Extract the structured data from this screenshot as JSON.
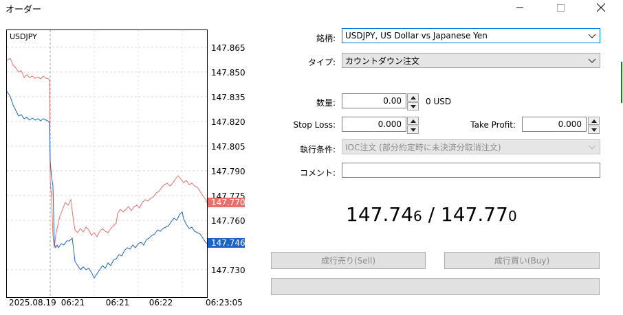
{
  "window": {
    "title": "オーダー"
  },
  "chart": {
    "symbol": "USDJPY",
    "yticks": [
      "147.865",
      "147.850",
      "147.835",
      "147.820",
      "147.805",
      "147.790",
      "147.775",
      "147.760",
      "147.730"
    ],
    "ask_label": "147.770",
    "bid_label": "147.746",
    "xticks": [
      "2025.08.19",
      "06:21",
      "06:21",
      "06:22",
      "06:23:05"
    ],
    "ask_color": "#e8706a",
    "bid_color": "#1e64c8"
  },
  "form": {
    "symbol_label": "銘柄:",
    "symbol_value": "USDJPY, US Dollar vs Japanese Yen",
    "type_label": "タイプ:",
    "type_value": "カウントダウン注文",
    "volume_label": "数量:",
    "volume_value": "0.00",
    "volume_unit": "0 USD",
    "sl_label": "Stop Loss:",
    "sl_value": "0.000",
    "tp_label": "Take Profit:",
    "tp_value": "0.000",
    "fill_label": "執行条件:",
    "fill_value": "IOC注文 (部分約定時に未決済分取消注文)",
    "comment_label": "コメント:",
    "comment_value": ""
  },
  "quote": {
    "bid_main": "147.74",
    "bid_small": "6",
    "sep": " / ",
    "ask_main": "147.77",
    "ask_small": "0"
  },
  "buttons": {
    "sell": "成行売り(Sell)",
    "buy": "成行買い(Buy)"
  }
}
